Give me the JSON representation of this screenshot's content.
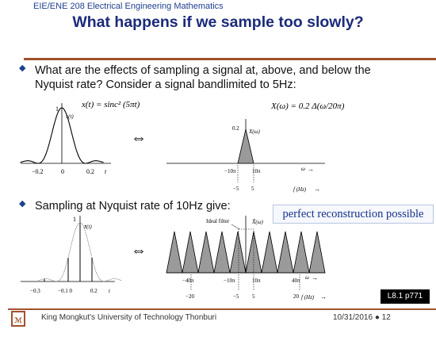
{
  "header": {
    "course": "EIE/ENE 208 Electrical Engineering Mathematics",
    "title": "What happens if we sample too slowly?"
  },
  "bullets": [
    {
      "text1": "What are the effects of sampling a signal at, above, and below the",
      "text2": "Nyquist rate?  Consider a signal  bandlimited to 5Hz:"
    },
    {
      "text1": "Sampling at Nyquist rate of 10Hz give:"
    }
  ],
  "equivalence_symbol": "⇔",
  "figure1": {
    "time_eq": "x(t) = sinc² (5πt)",
    "time_ylabel": "x(t)",
    "time_peak": "1",
    "time_ticks": [
      "−0.2",
      "0",
      "0.2"
    ],
    "time_axis": "t",
    "freq_eq": "X(ω) = 0.2 Δ(ω/20π)",
    "freq_peak": "0.2",
    "freq_ylabel": "X(ω)",
    "freq_ticks_omega": [
      "−10π",
      "10π"
    ],
    "freq_ticks_hz": [
      "−5",
      "5"
    ],
    "freq_axis_omega": "ω",
    "freq_axis_hz": "f (Hz)"
  },
  "figure2": {
    "time_ylabel": "x̄(t)",
    "time_peak": "1",
    "time_ticks": [
      "−0.3",
      "−0.1 0",
      "0.2"
    ],
    "time_axis": "t",
    "filter_label": "Ideal filter",
    "freq_ylabel": "X̄(ω)",
    "freq_ticks_omega": [
      "−40π",
      "−10π",
      "10π",
      "40π"
    ],
    "freq_ticks_hz": [
      "−20",
      "−5",
      "5",
      "20"
    ],
    "freq_axis_omega": "ω",
    "freq_axis_hz": "f (Hz)"
  },
  "callout": "perfect reconstruction possible",
  "reference_badge": "L8.1 p771",
  "footer": {
    "institution": "King Mongkut's University of Technology Thonburi",
    "date_page": "10/31/2016 ● 12"
  },
  "colors": {
    "title": "#1b2a7a",
    "rule": "#a0522d",
    "callout": "#14308a"
  }
}
